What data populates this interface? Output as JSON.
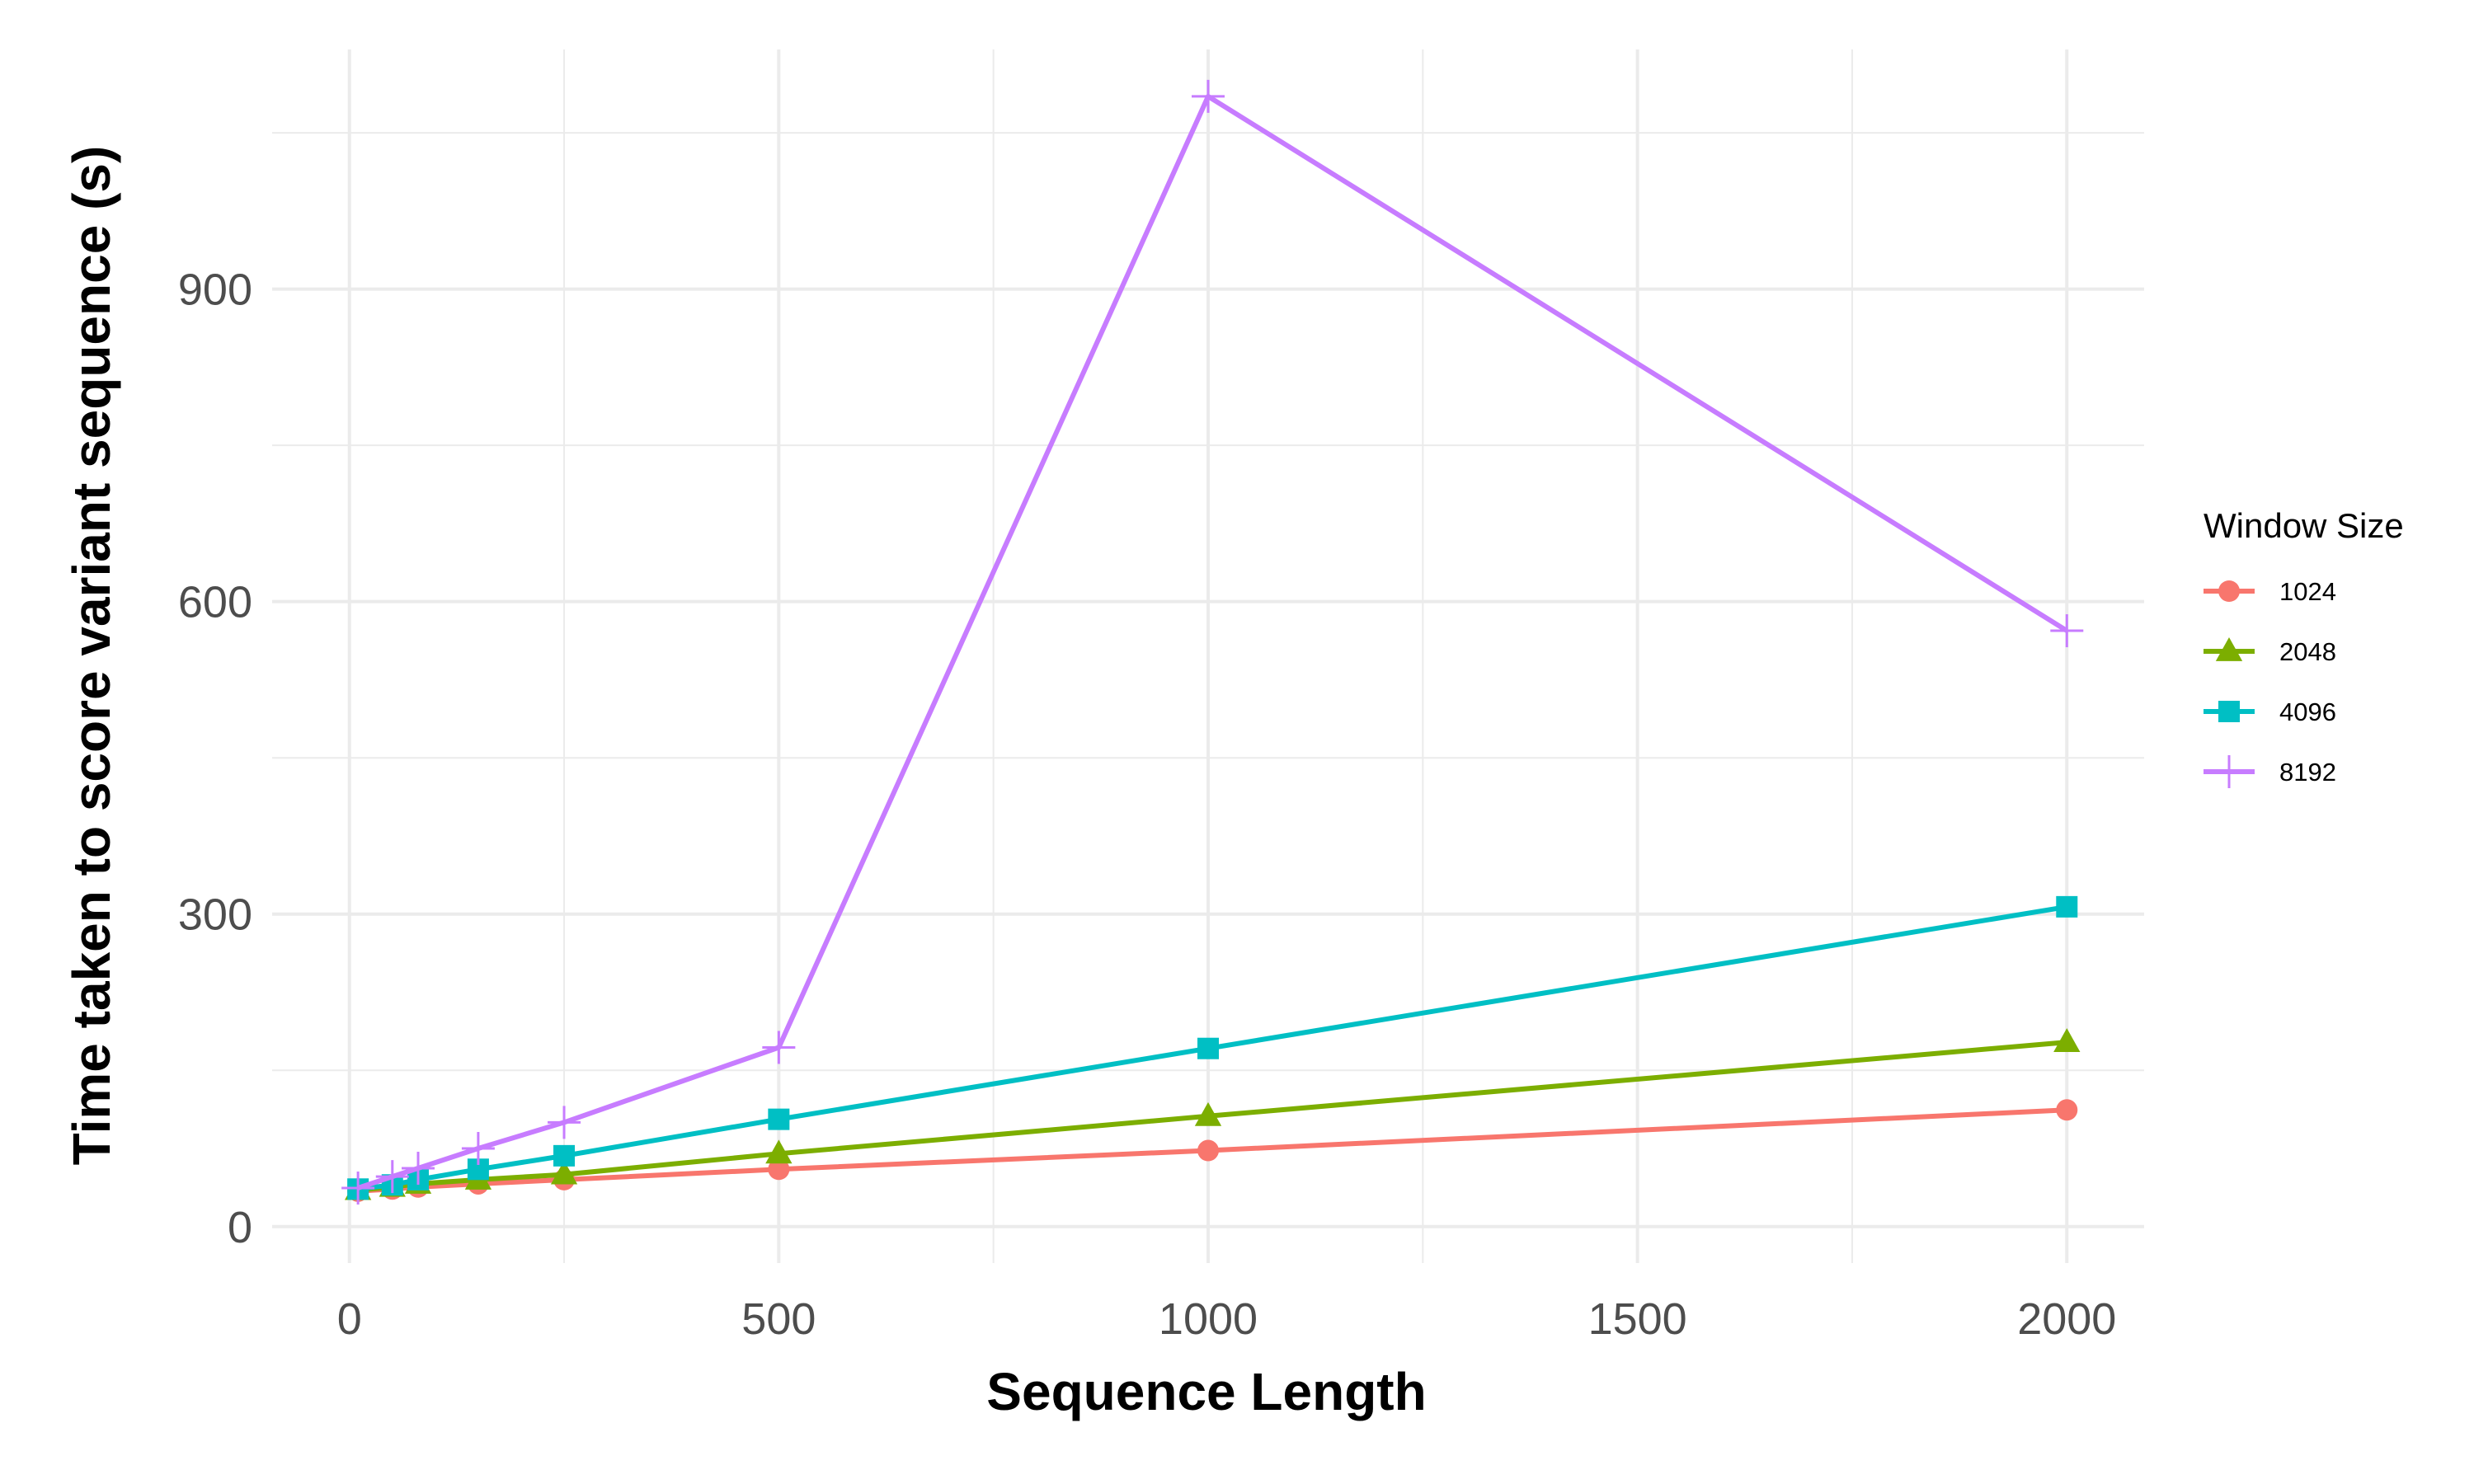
{
  "chart_data": {
    "type": "line",
    "xlabel": "Sequence Length",
    "ylabel": "Time taken to score variant sequence (s)",
    "xlim": [
      -90,
      2090
    ],
    "ylim": [
      -35,
      1130
    ],
    "x_ticks": [
      0,
      500,
      1000,
      1500,
      2000
    ],
    "x_tick_labels": [
      "0",
      "500",
      "1000",
      "1500",
      "2000"
    ],
    "x_minor_ticks": [
      250,
      750,
      1250,
      1750
    ],
    "y_ticks": [
      0,
      300,
      600,
      900
    ],
    "y_tick_labels": [
      "0",
      "300",
      "600",
      "900"
    ],
    "y_minor_ticks": [
      150,
      450,
      750,
      1050
    ],
    "grid": true,
    "legend": {
      "title": "Window Size",
      "position": "right"
    },
    "x": [
      10,
      50,
      80,
      150,
      250,
      500,
      1000,
      2000
    ],
    "series": [
      {
        "name": "1024",
        "color": "#F8766D",
        "marker": "circle",
        "values": [
          34,
          36,
          38,
          41,
          45,
          55,
          73,
          112
        ]
      },
      {
        "name": "2048",
        "color": "#7CAE00",
        "marker": "triangle",
        "values": [
          35,
          38,
          41,
          45,
          50,
          70,
          106,
          177
        ]
      },
      {
        "name": "4096",
        "color": "#00BFC4",
        "marker": "square",
        "values": [
          36,
          40,
          45,
          55,
          68,
          103,
          171,
          307
        ]
      },
      {
        "name": "8192",
        "color": "#C77CFF",
        "marker": "plus",
        "values": [
          37,
          48,
          56,
          75,
          100,
          172,
          1085,
          572
        ]
      }
    ]
  }
}
